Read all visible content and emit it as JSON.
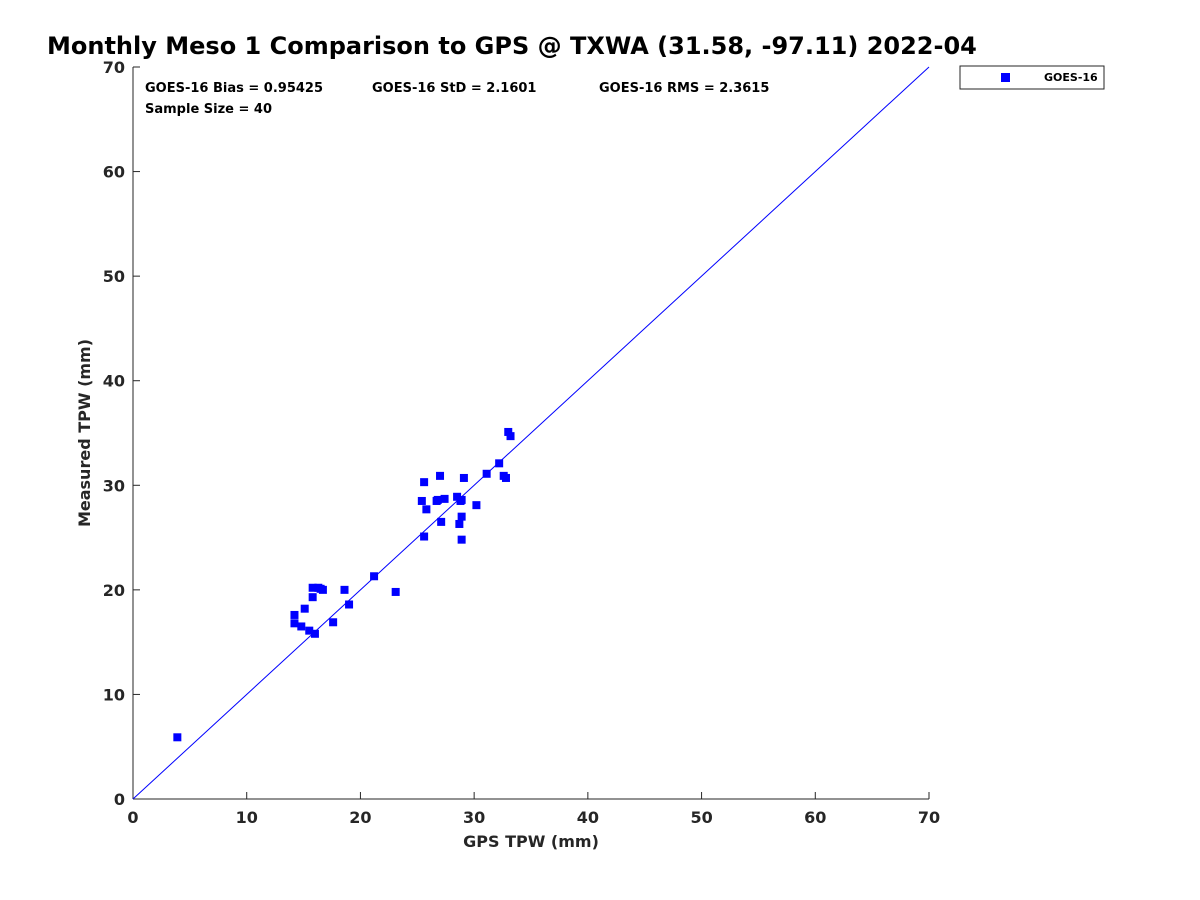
{
  "chart_data": {
    "type": "scatter",
    "title": "Monthly Meso 1 Comparison to GPS @ TXWA (31.58, -97.11) 2022-04",
    "xlabel": "GPS TPW (mm)",
    "ylabel": "Measured TPW (mm)",
    "xlim": [
      0,
      70
    ],
    "ylim": [
      0,
      70
    ],
    "xticks": [
      "0",
      "10",
      "20",
      "30",
      "40",
      "50",
      "60",
      "70"
    ],
    "yticks": [
      "0",
      "10",
      "20",
      "30",
      "40",
      "50",
      "60",
      "70"
    ],
    "grid": false,
    "legend_position": "outside top-right",
    "stats": {
      "bias": "GOES-16 Bias = 0.95425",
      "std": "GOES-16 StD = 2.1601",
      "rms": "GOES-16 RMS = 2.3615",
      "sample_size": "Sample Size = 40"
    },
    "reference_line": {
      "type": "one-to-one",
      "color": "#0000ff"
    },
    "series": [
      {
        "name": "GOES-16",
        "color": "#0000ff",
        "marker": "square",
        "points": [
          [
            3.9,
            5.9
          ],
          [
            14.2,
            17.6
          ],
          [
            14.2,
            16.8
          ],
          [
            14.8,
            16.5
          ],
          [
            15.1,
            18.2
          ],
          [
            15.5,
            16.1
          ],
          [
            15.8,
            20.2
          ],
          [
            15.8,
            19.3
          ],
          [
            16.0,
            15.8
          ],
          [
            16.3,
            20.2
          ],
          [
            16.7,
            20.0
          ],
          [
            17.6,
            16.9
          ],
          [
            18.6,
            20.0
          ],
          [
            19.0,
            18.6
          ],
          [
            21.2,
            21.3
          ],
          [
            23.1,
            19.8
          ],
          [
            25.4,
            28.5
          ],
          [
            25.6,
            30.3
          ],
          [
            25.6,
            25.1
          ],
          [
            25.8,
            27.7
          ],
          [
            26.7,
            28.5
          ],
          [
            27.0,
            30.9
          ],
          [
            27.1,
            26.5
          ],
          [
            27.4,
            28.7
          ],
          [
            28.5,
            28.9
          ],
          [
            28.7,
            26.3
          ],
          [
            28.8,
            28.5
          ],
          [
            28.9,
            27.0
          ],
          [
            28.9,
            24.8
          ],
          [
            29.1,
            30.7
          ],
          [
            30.2,
            28.1
          ],
          [
            31.1,
            31.1
          ],
          [
            32.2,
            32.1
          ],
          [
            32.6,
            30.9
          ],
          [
            32.8,
            30.7
          ],
          [
            33.0,
            35.1
          ],
          [
            33.2,
            34.7
          ],
          [
            28.9,
            28.6
          ],
          [
            16.5,
            20.1
          ],
          [
            26.8,
            28.6
          ]
        ]
      }
    ]
  },
  "legend": {
    "label": "GOES-16"
  }
}
